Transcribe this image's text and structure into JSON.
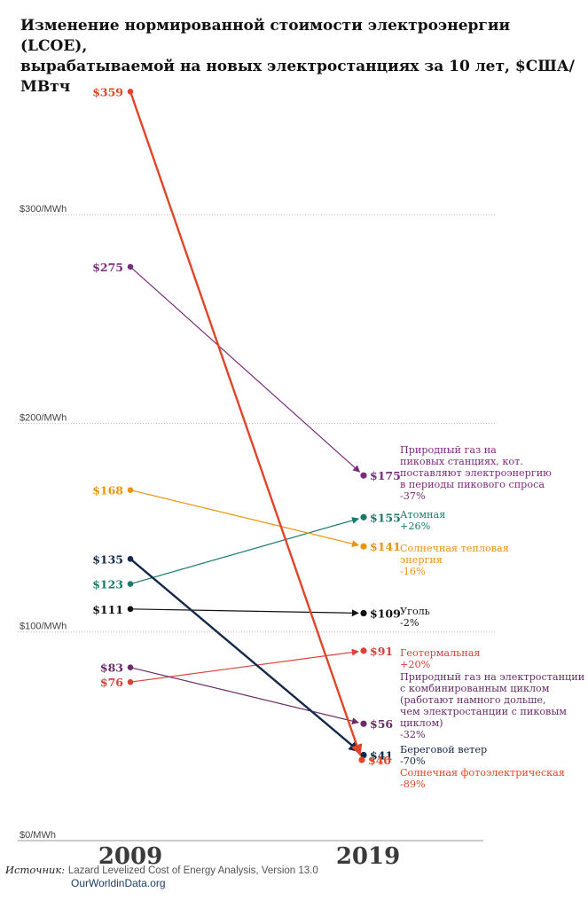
{
  "title_line1": "Изменение нормированной стоимости электроэнергии (LCOE),",
  "title_line2": "вырабатываемой на новых электростанциях за 10 лет, $США/МВтч",
  "source_label": "Источник:",
  "source_text": "Lazard Levelized Cost of Energy Analysis, Version 13.0",
  "source_org": "OurWorldinData.org",
  "chart_data": {
    "type": "line",
    "x": [
      "2009",
      "2019"
    ],
    "ylim": [
      0,
      380
    ],
    "y_ticks": [
      {
        "value": 0,
        "label": "$0/MWh"
      },
      {
        "value": 100,
        "label": "$100/MWh"
      },
      {
        "value": 200,
        "label": "$200/MWh"
      },
      {
        "value": 300,
        "label": "$300/MWh"
      }
    ],
    "grid": true,
    "series": [
      {
        "id": "gas-peaking",
        "values": [
          275,
          175
        ],
        "labels": [
          "$275",
          "$175"
        ],
        "color": "#7b2d7b",
        "annotation": [
          "Природный газ на",
          "пиковых станциях, кот.",
          "поставляют электроэнергию",
          "в периоды пикового спроса",
          "-37%"
        ]
      },
      {
        "id": "nuclear",
        "values": [
          123,
          155
        ],
        "labels": [
          "$123",
          "$155"
        ],
        "color": "#1a7a6a",
        "annotation": [
          "Атомная",
          "+26%"
        ]
      },
      {
        "id": "solar-thermal",
        "values": [
          168,
          141
        ],
        "labels": [
          "$168",
          "$141"
        ],
        "color": "#e8950e",
        "annotation": [
          "Солнечная тепловая",
          "энергия",
          "-16%"
        ]
      },
      {
        "id": "coal",
        "values": [
          111,
          109
        ],
        "labels": [
          "$111",
          "$109"
        ],
        "color": "#111111",
        "annotation": [
          "Уголь",
          "-2%"
        ]
      },
      {
        "id": "geothermal",
        "values": [
          76,
          91
        ],
        "labels": [
          "$76",
          "$91"
        ],
        "color": "#d9413a",
        "annotation": [
          "Геотермальная",
          "+20%"
        ]
      },
      {
        "id": "gas-combined",
        "values": [
          83,
          56
        ],
        "labels": [
          "$83",
          "$56"
        ],
        "color": "#6a2d6a",
        "annotation": [
          "Природный газ на электростанции",
          "с комбинированным циклом",
          "(работают намного дольше,",
          "чем электростанции с пиковым",
          "циклом)",
          "-32%"
        ]
      },
      {
        "id": "onshore-wind",
        "values": [
          135,
          41
        ],
        "labels": [
          "$135",
          "$41"
        ],
        "color": "#14284a",
        "annotation": [
          "Береговой ветер",
          "-70%"
        ]
      },
      {
        "id": "solar-pv",
        "values": [
          359,
          40
        ],
        "labels": [
          "$359",
          "$40"
        ],
        "color": "#e0452a",
        "annotation": [
          "Солнечная фотоэлектрическая",
          "-89%"
        ]
      }
    ]
  }
}
